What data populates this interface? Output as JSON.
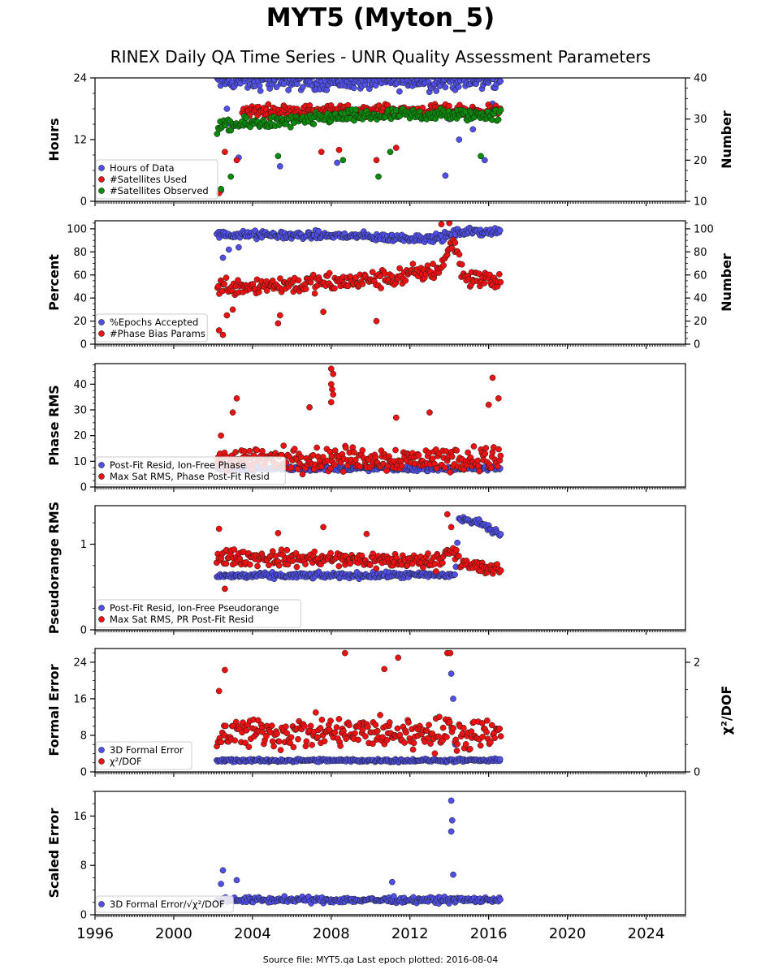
{
  "title": "MYT5 (Myton_5)",
  "subtitle": "RINEX Daily QA Time Series - UNR Quality Assessment Parameters",
  "footer": "Source file: MYT5.qa Last epoch plotted: 2016-08-04",
  "colors": {
    "blue": "#5050e8",
    "red": "#ee1111",
    "green": "#0a8a0a",
    "edge": "#1a1a1a"
  },
  "chart_data": [
    {
      "type": "scatter",
      "ylabel": "Hours",
      "ylabel_right": "Number",
      "xlim": [
        1996,
        2026
      ],
      "ylim": [
        0,
        24
      ],
      "ylim_right": [
        10,
        40
      ],
      "yticks": [
        0,
        12,
        24
      ],
      "yticks_right": [
        10,
        20,
        30,
        40
      ],
      "legend_position": "lower-left",
      "series": [
        {
          "name": "Hours of Data",
          "color": "blue",
          "axis": "left",
          "baseline": 23.3,
          "spread": 1.4,
          "outliers": [
            [
              2002.4,
              2.1
            ],
            [
              2002.7,
              18
            ],
            [
              2002.9,
              15
            ],
            [
              2003.3,
              8.5
            ],
            [
              2005.4,
              6.8
            ],
            [
              2008.3,
              7.5
            ],
            [
              2013.8,
              5
            ],
            [
              2014.0,
              16
            ],
            [
              2014.5,
              12
            ],
            [
              2015.2,
              14
            ],
            [
              2015.8,
              8
            ],
            [
              2016.2,
              19
            ]
          ]
        },
        {
          "name": "#Satellites Used",
          "color": "red",
          "axis": "right",
          "baseline": 32,
          "spread": 1.2,
          "start": 2003.5,
          "outliers": [
            [
              2002.3,
              12
            ],
            [
              2002.6,
              22
            ],
            [
              2003.2,
              20
            ],
            [
              2007.5,
              22
            ],
            [
              2008.4,
              22.5
            ],
            [
              2010.3,
              20
            ],
            [
              2011.3,
              23
            ]
          ]
        },
        {
          "name": "#Satellites Observed",
          "color": "green",
          "axis": "right",
          "trend": [
            [
              2002.2,
              28
            ],
            [
              2004.0,
              29
            ],
            [
              2006.5,
              29.5
            ],
            [
              2008.0,
              30.5
            ],
            [
              2012.0,
              31
            ],
            [
              2016.6,
              31
            ]
          ],
          "spread": 1.3,
          "outliers": [
            [
              2002.4,
              13
            ],
            [
              2002.9,
              16
            ],
            [
              2005.3,
              21
            ],
            [
              2008.6,
              20
            ],
            [
              2010.4,
              16
            ],
            [
              2011.0,
              22
            ],
            [
              2015.6,
              21
            ]
          ]
        }
      ]
    },
    {
      "type": "scatter",
      "ylabel": "Percent",
      "ylabel_right": "Number",
      "xlim": [
        1996,
        2026
      ],
      "ylim": [
        0,
        107
      ],
      "ylim_right": [
        0,
        107
      ],
      "yticks": [
        0,
        20,
        40,
        60,
        80,
        100
      ],
      "yticks_right": [
        0,
        20,
        40,
        60,
        80,
        100
      ],
      "legend_position": "lower-left",
      "series": [
        {
          "name": "%Epochs Accepted",
          "color": "blue",
          "axis": "left",
          "trend": [
            [
              2002.2,
              95
            ],
            [
              2009.0,
              94
            ],
            [
              2011.0,
              92
            ],
            [
              2013.5,
              92
            ],
            [
              2014.5,
              97
            ],
            [
              2016.6,
              98
            ]
          ],
          "spread": 3,
          "outliers": [
            [
              2002.5,
              75
            ],
            [
              2002.8,
              82
            ],
            [
              2003.3,
              84
            ],
            [
              2014.2,
              88
            ]
          ]
        },
        {
          "name": "#Phase Bias Params",
          "color": "red",
          "axis": "left",
          "trend": [
            [
              2002.2,
              50
            ],
            [
              2008.0,
              53
            ],
            [
              2011.0,
              57
            ],
            [
              2013.5,
              65
            ],
            [
              2014.2,
              90
            ],
            [
              2014.8,
              58
            ],
            [
              2016.6,
              54
            ]
          ],
          "spread": 7,
          "outliers": [
            [
              2002.3,
              12
            ],
            [
              2002.5,
              8
            ],
            [
              2002.7,
              25
            ],
            [
              2003.0,
              30
            ],
            [
              2005.3,
              18
            ],
            [
              2005.4,
              25
            ],
            [
              2007.6,
              28
            ],
            [
              2010.3,
              20
            ],
            [
              2013.6,
              104
            ],
            [
              2014.0,
              105
            ]
          ]
        }
      ]
    },
    {
      "type": "scatter",
      "ylabel": "Phase RMS",
      "xlim": [
        1996,
        2026
      ],
      "ylim": [
        0,
        48
      ],
      "yticks": [
        0,
        10,
        20,
        30,
        40
      ],
      "legend_position": "lower-left",
      "series": [
        {
          "name": "Post-Fit Resid, Ion-Free Phase",
          "color": "blue",
          "axis": "left",
          "baseline": 7.2,
          "spread": 0.8
        },
        {
          "name": "Max Sat RMS, Phase Post-Fit Resid",
          "color": "red",
          "axis": "left",
          "baseline": 11,
          "spread": 4,
          "outliers": [
            [
              2002.4,
              20
            ],
            [
              2003.0,
              29
            ],
            [
              2003.2,
              34.5
            ],
            [
              2006.9,
              31
            ],
            [
              2008.0,
              46
            ],
            [
              2008.1,
              44
            ],
            [
              2008.0,
              40
            ],
            [
              2008.05,
              38
            ],
            [
              2008.1,
              36
            ],
            [
              2008.0,
              33
            ],
            [
              2011.3,
              27
            ],
            [
              2013.0,
              29
            ],
            [
              2016.2,
              42.5
            ],
            [
              2016.5,
              34.5
            ],
            [
              2016.0,
              32
            ]
          ]
        }
      ]
    },
    {
      "type": "scatter",
      "ylabel": "Pseudorange RMS",
      "xlim": [
        1996,
        2026
      ],
      "ylim": [
        0,
        1.45
      ],
      "yticks": [
        0,
        1
      ],
      "legend_position": "lower-left",
      "series": [
        {
          "name": "Post-Fit Resid, Ion-Free Pseudorange",
          "color": "blue",
          "axis": "left",
          "trend": [
            [
              2002.2,
              0.63
            ],
            [
              2014.3,
              0.64
            ],
            [
              2014.5,
              1.3
            ],
            [
              2015.5,
              1.25
            ],
            [
              2016.6,
              1.12
            ]
          ],
          "spread": 0.03
        },
        {
          "name": "Max Sat RMS, PR Post-Fit Resid",
          "color": "red",
          "axis": "left",
          "trend": [
            [
              2002.2,
              0.85
            ],
            [
              2013.5,
              0.8
            ],
            [
              2014.0,
              0.95
            ],
            [
              2015.0,
              0.75
            ],
            [
              2016.6,
              0.68
            ]
          ],
          "spread": 0.08,
          "outliers": [
            [
              2002.3,
              1.18
            ],
            [
              2002.6,
              0.48
            ],
            [
              2005.3,
              1.13
            ],
            [
              2007.6,
              1.2
            ],
            [
              2009.8,
              1.12
            ],
            [
              2013.9,
              1.35
            ],
            [
              2014.1,
              1.2
            ]
          ]
        }
      ]
    },
    {
      "type": "scatter",
      "ylabel": "Formal Error",
      "ylabel_right": "χ²/DOF",
      "xlim": [
        1996,
        2026
      ],
      "ylim": [
        0,
        27
      ],
      "ylim_right": [
        0,
        2.25
      ],
      "yticks": [
        0,
        8,
        16,
        24
      ],
      "yticks_right": [
        0,
        2
      ],
      "legend_position": "lower-left",
      "series": [
        {
          "name": "3D Formal Error",
          "color": "blue",
          "axis": "left",
          "baseline": 2.5,
          "spread": 0.3,
          "outliers": [
            [
              2014.1,
              21.5
            ],
            [
              2014.2,
              16
            ],
            [
              2014.3,
              6
            ]
          ]
        },
        {
          "name": "χ²/DOF",
          "color": "red",
          "axis": "left",
          "baseline": 8.5,
          "spread": 3,
          "outliers": [
            [
              2002.3,
              17.7
            ],
            [
              2002.6,
              22.3
            ],
            [
              2008.7,
              26
            ],
            [
              2010.7,
              22.5
            ],
            [
              2011.4,
              25
            ],
            [
              2013.9,
              26
            ],
            [
              2014.05,
              26
            ]
          ]
        }
      ]
    },
    {
      "type": "scatter",
      "ylabel": "Scaled Error",
      "xlim": [
        1996,
        2026
      ],
      "ylim": [
        0,
        20
      ],
      "yticks": [
        0,
        8,
        16
      ],
      "xticks": [
        1996,
        2000,
        2004,
        2008,
        2012,
        2016,
        2020,
        2024
      ],
      "legend_position": "lower-left",
      "series": [
        {
          "name": "3D Formal Error/√χ²/DOF",
          "color": "blue",
          "axis": "left",
          "baseline": 2.4,
          "spread": 0.4,
          "outliers": [
            [
              2002.5,
              7.2
            ],
            [
              2002.4,
              5
            ],
            [
              2003.2,
              5.6
            ],
            [
              2011.1,
              5.3
            ],
            [
              2014.1,
              18.5
            ],
            [
              2014.15,
              15.3
            ],
            [
              2014.1,
              13.5
            ],
            [
              2014.2,
              6.5
            ]
          ]
        }
      ]
    }
  ]
}
